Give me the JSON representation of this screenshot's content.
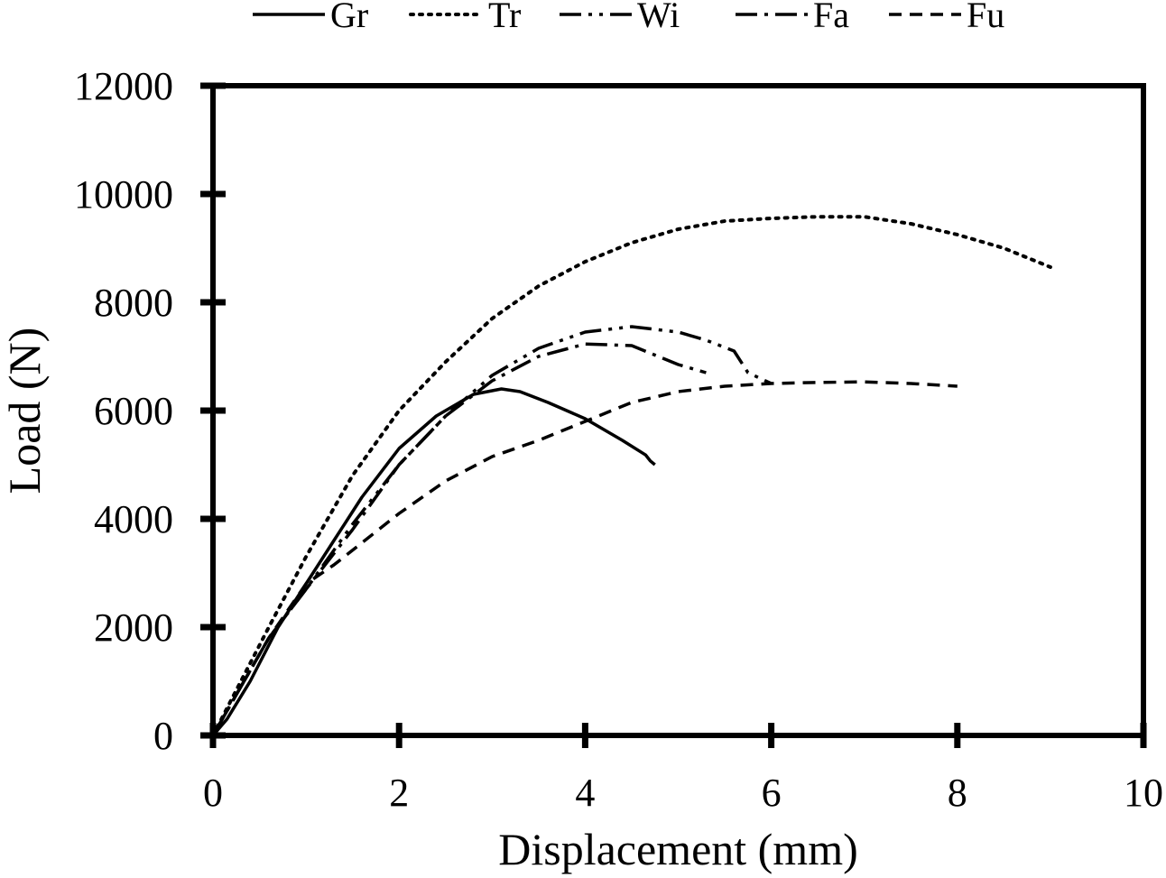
{
  "chart_data": {
    "type": "line",
    "xlabel": "Displacement (mm)",
    "ylabel": "Load (N)",
    "xlim": [
      0,
      10
    ],
    "ylim": [
      0,
      12000
    ],
    "xticks": [
      0,
      2,
      4,
      6,
      8,
      10
    ],
    "yticks": [
      0,
      2000,
      4000,
      6000,
      8000,
      10000,
      12000
    ],
    "x_tick_labels": [
      "0",
      "2",
      "4",
      "6",
      "8",
      "10"
    ],
    "y_tick_labels": [
      "0",
      "2000",
      "4000",
      "6000",
      "8000",
      "10000",
      "12000"
    ],
    "grid": false,
    "legend_position": "top",
    "series": [
      {
        "name": "Gr",
        "line_style": "solid",
        "x": [
          0,
          0.15,
          0.4,
          0.7,
          1.0,
          1.3,
          1.6,
          2.0,
          2.4,
          2.8,
          3.1,
          3.3,
          3.6,
          4.0,
          4.4,
          4.65,
          4.7,
          4.75
        ],
        "y": [
          0,
          300,
          1000,
          2000,
          2800,
          3600,
          4400,
          5300,
          5900,
          6300,
          6400,
          6350,
          6150,
          5850,
          5450,
          5180,
          5070,
          5000
        ]
      },
      {
        "name": "Tr",
        "line_style": "dotted",
        "x": [
          0,
          0.3,
          0.6,
          1.0,
          1.5,
          2.0,
          2.5,
          3.0,
          3.5,
          4.0,
          4.5,
          5.0,
          5.5,
          6.0,
          6.5,
          7.0,
          7.5,
          8.0,
          8.5,
          9.0
        ],
        "y": [
          0,
          1000,
          2000,
          3300,
          4800,
          6000,
          6900,
          7700,
          8300,
          8750,
          9100,
          9350,
          9500,
          9550,
          9580,
          9580,
          9450,
          9250,
          9000,
          8650
        ]
      },
      {
        "name": "Wi",
        "line_style": "dash-dot-dot",
        "x": [
          0,
          0.3,
          0.6,
          1.0,
          1.5,
          2.0,
          2.5,
          3.0,
          3.5,
          4.0,
          4.5,
          5.0,
          5.3,
          5.6,
          5.75,
          6.0
        ],
        "y": [
          0,
          900,
          1800,
          2700,
          3900,
          5000,
          5900,
          6650,
          7150,
          7450,
          7550,
          7450,
          7300,
          7100,
          6700,
          6500
        ]
      },
      {
        "name": "Fa",
        "line_style": "dash-dot",
        "x": [
          0,
          0.3,
          0.6,
          1.0,
          1.5,
          2.0,
          2.5,
          3.0,
          3.5,
          4.0,
          4.5,
          5.0,
          5.3
        ],
        "y": [
          0,
          900,
          1800,
          2700,
          3800,
          5000,
          5900,
          6550,
          7000,
          7230,
          7200,
          6850,
          6700
        ]
      },
      {
        "name": "Fu",
        "line_style": "dashed",
        "x": [
          0,
          0.3,
          0.6,
          1.0,
          1.3,
          2.0,
          2.5,
          3.0,
          3.5,
          4.0,
          4.5,
          5.0,
          5.5,
          6.0,
          6.5,
          7.0,
          7.5,
          8.0
        ],
        "y": [
          0,
          900,
          1800,
          2800,
          3150,
          4100,
          4700,
          5150,
          5450,
          5800,
          6150,
          6350,
          6450,
          6500,
          6520,
          6530,
          6500,
          6450
        ]
      }
    ]
  }
}
